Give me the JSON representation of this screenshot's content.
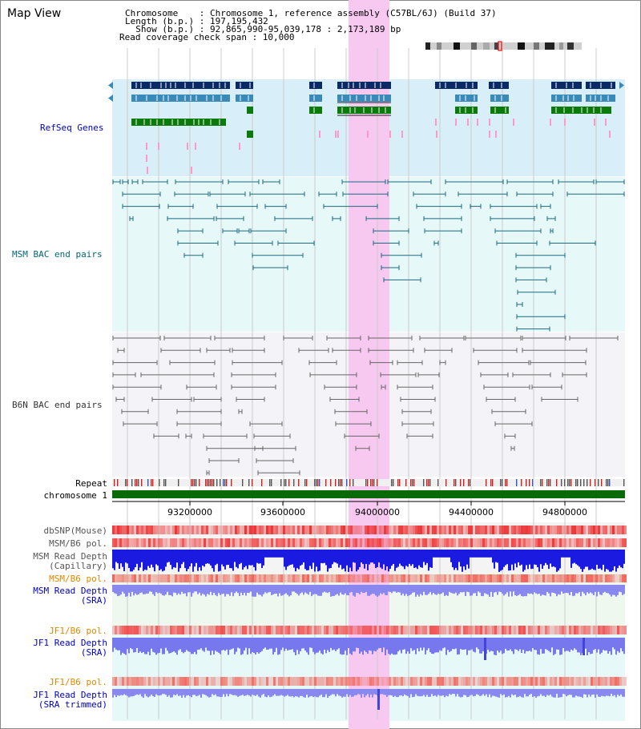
{
  "header": {
    "view_title": "Map View",
    "chromosome_line": "Chromosome    : Chromosome 1, reference assembly (C57BL/6J) (Build 37)",
    "length_line": "Length (b.p.) : 197,195,432",
    "show_line": "  Show (b.p.) : 92,865,990-95,039,178 : 2,173,189 bp",
    "coverage_line": "Read coverage check span : 10,000"
  },
  "tracks": {
    "refseq": "RefSeq Genes",
    "msm_bac": "MSM BAC end pairs",
    "b6n_bac": "B6N BAC end pairs",
    "repeat": "Repeat",
    "chromosome": "chromosome 1",
    "dbsnp": "dbSNP(Mouse)",
    "msm_b6_pol": "MSM/B6 pol.",
    "msm_depth_cap_1": "MSM Read Depth",
    "msm_depth_cap_2": "(Capillary)",
    "msm_b6_pol_sra": "MSM/B6 pol.",
    "msm_depth_sra_1": "MSM Read Depth",
    "msm_depth_sra_2": "(SRA)",
    "jf1_b6_pol": "JF1/B6 pol.",
    "jf1_depth_1": "JF1 Read Depth",
    "jf1_depth_2": "(SRA)",
    "jf1_b6_pol_2": "JF1/B6 pol.",
    "jf1_trim_1": "JF1 Read Depth",
    "jf1_trim_2": "(SRA trimmed)"
  },
  "axis": {
    "ticks": [
      "93200000",
      "93600000",
      "94000000",
      "94400000",
      "94800000"
    ]
  },
  "colors": {
    "refseq_dark": "#0a2a66",
    "refseq_mid": "#3a8ab8",
    "refseq_green": "#0a7a0a",
    "msm_line": "#1a6a80",
    "b6n_line": "#666666",
    "highlight": "#f7c8f0",
    "label_blue": "#0000cc",
    "label_teal": "#006677",
    "label_orange": "#e08800"
  }
}
